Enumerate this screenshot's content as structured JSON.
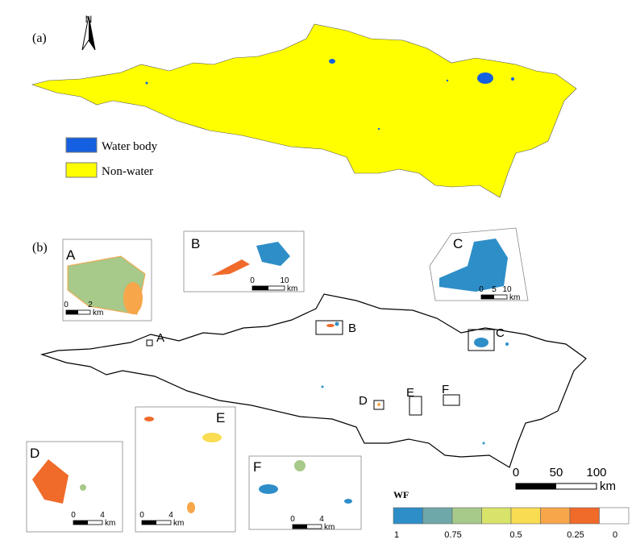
{
  "panel_a": {
    "label": "(a)",
    "north": "N",
    "legend": [
      {
        "label": "Water body",
        "color": "#1560e0"
      },
      {
        "label": "Non-water",
        "color": "#ffff00"
      }
    ]
  },
  "panel_b": {
    "label": "(b)",
    "sites": [
      "A",
      "B",
      "C",
      "D",
      "E",
      "F"
    ],
    "insets": [
      {
        "label": "A",
        "scale": [
          "0",
          "2"
        ],
        "unit": "km"
      },
      {
        "label": "B",
        "scale": [
          "0",
          "10"
        ],
        "unit": "km"
      },
      {
        "label": "C",
        "scale": [
          "0",
          "5",
          "10"
        ],
        "unit": "km"
      },
      {
        "label": "D",
        "scale": [
          "0",
          "4"
        ],
        "unit": "km"
      },
      {
        "label": "E",
        "scale": [
          "0",
          "4"
        ],
        "unit": "km"
      },
      {
        "label": "F",
        "scale": [
          "0",
          "4"
        ],
        "unit": "km"
      }
    ],
    "scale": {
      "ticks": [
        "0",
        "50",
        "100"
      ],
      "unit": "km"
    },
    "wf_legend": {
      "title": "WF",
      "colors": [
        "#2e8ec8",
        "#6fa8a8",
        "#a7c98a",
        "#d8e36a",
        "#f9dc52",
        "#f7a64a",
        "#f06a2a",
        "#ffffff"
      ],
      "labels": [
        "1",
        "0.75",
        "0.5",
        "0.25",
        "0"
      ]
    }
  }
}
